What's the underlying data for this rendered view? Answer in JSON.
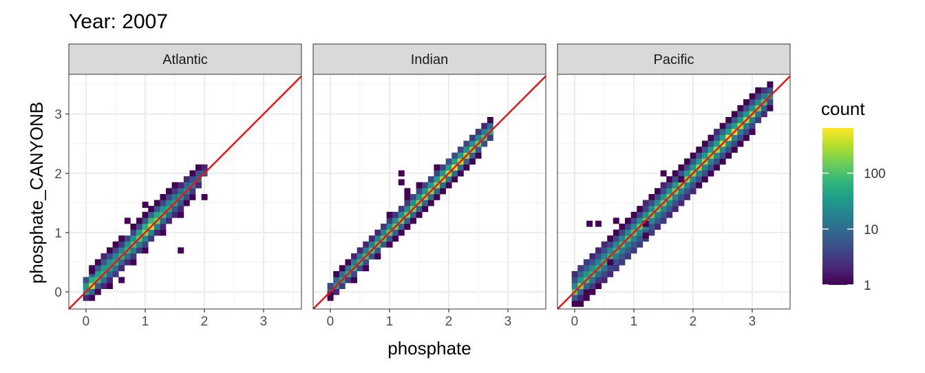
{
  "chart_data": {
    "type": "heatmap",
    "subtype": "2d-histogram faceted",
    "title": "Year: 2007",
    "xlabel": "phosphate",
    "ylabel": "phosphate_CANYONB",
    "xlim": [
      -0.29,
      3.64
    ],
    "ylim": [
      -0.29,
      3.67
    ],
    "x_ticks": [
      "0",
      "1",
      "2",
      "3"
    ],
    "y_ticks": [
      "0",
      "1",
      "2",
      "3"
    ],
    "x_tick_values": [
      0,
      1,
      2,
      3
    ],
    "y_tick_values": [
      0,
      1,
      2,
      3
    ],
    "grid": true,
    "reference_line": {
      "slope": 1,
      "intercept": 0,
      "color": "#ee1111"
    },
    "bin_width": 0.1,
    "strip_offsets_note": "each strip: [x, counts at y = x + k*bin for k = -3..3]",
    "legend": {
      "title": "count",
      "scale": "log10",
      "range": [
        1,
        640
      ],
      "ticks": [
        "1",
        "10",
        "100"
      ],
      "tick_values": [
        1,
        10,
        100
      ],
      "colors": [
        "#440154",
        "#482878",
        "#3e4989",
        "#31688e",
        "#26828e",
        "#1f9e89",
        "#35b779",
        "#6ece58",
        "#b5de2b",
        "#fde725"
      ],
      "placement": "right"
    },
    "facets": [
      {
        "name": "Atlantic",
        "strips": [
          [
            0.0,
            [
              0,
              0,
              2,
              40,
              30,
              5,
              0
            ]
          ],
          [
            0.1,
            [
              0,
              1,
              8,
              300,
              60,
              8,
              1
            ]
          ],
          [
            0.2,
            [
              0,
              1,
              6,
              80,
              40,
              6,
              1
            ]
          ],
          [
            0.3,
            [
              0,
              2,
              10,
              60,
              30,
              6,
              2
            ]
          ],
          [
            0.4,
            [
              1,
              2,
              8,
              40,
              25,
              5,
              1
            ]
          ],
          [
            0.5,
            [
              0,
              3,
              10,
              50,
              20,
              4,
              1
            ]
          ],
          [
            0.6,
            [
              0,
              2,
              8,
              60,
              20,
              3,
              1
            ]
          ],
          [
            0.7,
            [
              0,
              2,
              10,
              70,
              25,
              4,
              0
            ]
          ],
          [
            0.8,
            [
              1,
              3,
              15,
              90,
              30,
              4,
              1
            ]
          ],
          [
            0.9,
            [
              0,
              3,
              15,
              120,
              40,
              5,
              1
            ]
          ],
          [
            1.0,
            [
              1,
              4,
              20,
              200,
              60,
              6,
              1
            ]
          ],
          [
            1.1,
            [
              0,
              3,
              20,
              400,
              80,
              8,
              1
            ]
          ],
          [
            1.2,
            [
              0,
              2,
              15,
              150,
              50,
              6,
              1
            ]
          ],
          [
            1.3,
            [
              1,
              2,
              10,
              80,
              30,
              4,
              1
            ]
          ],
          [
            1.4,
            [
              0,
              2,
              8,
              50,
              20,
              4,
              1
            ]
          ],
          [
            1.5,
            [
              0,
              2,
              6,
              40,
              15,
              3,
              1
            ]
          ],
          [
            1.6,
            [
              1,
              2,
              5,
              30,
              10,
              2,
              0
            ]
          ],
          [
            1.7,
            [
              0,
              1,
              4,
              20,
              8,
              2,
              0
            ]
          ],
          [
            1.8,
            [
              0,
              1,
              3,
              15,
              6,
              1,
              0
            ]
          ],
          [
            1.9,
            [
              0,
              0,
              2,
              10,
              5,
              1,
              0
            ]
          ],
          [
            2.0,
            [
              0,
              0,
              0,
              6,
              2,
              0,
              0
            ]
          ]
        ],
        "outliers": [
          [
            1.6,
            0.7,
            1
          ],
          [
            0.6,
            0.2,
            1
          ],
          [
            2.0,
            1.6,
            1
          ],
          [
            1.0,
            1.47,
            1
          ],
          [
            0.7,
            1.2,
            1
          ],
          [
            0.1,
            0.35,
            1
          ]
        ]
      },
      {
        "name": "Indian",
        "strips": [
          [
            0.0,
            [
              0,
              0,
              1,
              8,
              4,
              0,
              0
            ]
          ],
          [
            0.1,
            [
              0,
              0,
              2,
              30,
              8,
              1,
              0
            ]
          ],
          [
            0.2,
            [
              0,
              0,
              3,
              40,
              10,
              1,
              0
            ]
          ],
          [
            0.3,
            [
              0,
              0,
              3,
              50,
              12,
              1,
              0
            ]
          ],
          [
            0.4,
            [
              0,
              1,
              4,
              60,
              14,
              2,
              0
            ]
          ],
          [
            0.5,
            [
              0,
              0,
              4,
              70,
              15,
              2,
              0
            ]
          ],
          [
            0.6,
            [
              0,
              1,
              5,
              80,
              16,
              2,
              0
            ]
          ],
          [
            0.7,
            [
              0,
              0,
              5,
              90,
              18,
              2,
              0
            ]
          ],
          [
            0.8,
            [
              0,
              1,
              6,
              100,
              20,
              2,
              0
            ]
          ],
          [
            0.9,
            [
              0,
              0,
              6,
              110,
              20,
              3,
              0
            ]
          ],
          [
            1.0,
            [
              0,
              1,
              6,
              120,
              22,
              3,
              1
            ]
          ],
          [
            1.1,
            [
              0,
              1,
              7,
              130,
              24,
              3,
              0
            ]
          ],
          [
            1.2,
            [
              0,
              1,
              7,
              140,
              25,
              3,
              0
            ]
          ],
          [
            1.3,
            [
              0,
              1,
              7,
              150,
              26,
              3,
              1
            ]
          ],
          [
            1.4,
            [
              0,
              1,
              8,
              160,
              28,
              4,
              0
            ]
          ],
          [
            1.5,
            [
              0,
              1,
              8,
              170,
              30,
              4,
              1
            ]
          ],
          [
            1.6,
            [
              0,
              1,
              8,
              180,
              30,
              4,
              0
            ]
          ],
          [
            1.7,
            [
              0,
              1,
              9,
              200,
              32,
              4,
              0
            ]
          ],
          [
            1.8,
            [
              0,
              1,
              10,
              220,
              34,
              4,
              1
            ]
          ],
          [
            1.9,
            [
              0,
              1,
              10,
              260,
              36,
              4,
              0
            ]
          ],
          [
            2.0,
            [
              0,
              1,
              10,
              300,
              40,
              5,
              0
            ]
          ],
          [
            2.1,
            [
              0,
              1,
              10,
              450,
              40,
              5,
              0
            ]
          ],
          [
            2.2,
            [
              0,
              1,
              9,
              350,
              36,
              4,
              0
            ]
          ],
          [
            2.3,
            [
              0,
              1,
              8,
              250,
              30,
              4,
              0
            ]
          ],
          [
            2.4,
            [
              0,
              1,
              7,
              180,
              26,
              3,
              0
            ]
          ],
          [
            2.5,
            [
              0,
              1,
              6,
              140,
              20,
              3,
              0
            ]
          ],
          [
            2.6,
            [
              0,
              0,
              5,
              100,
              16,
              2,
              0
            ]
          ],
          [
            2.7,
            [
              0,
              0,
              3,
              40,
              10,
              1,
              0
            ]
          ]
        ],
        "outliers": [
          [
            1.2,
            2.0,
            1
          ],
          [
            1.2,
            1.85,
            1
          ],
          [
            1.3,
            1.7,
            1
          ],
          [
            0.0,
            -0.05,
            1
          ]
        ]
      },
      {
        "name": "Pacific",
        "strips": [
          [
            0.0,
            [
              0,
              1,
              6,
              120,
              20,
              5,
              2
            ]
          ],
          [
            0.1,
            [
              1,
              2,
              8,
              200,
              30,
              8,
              3
            ]
          ],
          [
            0.2,
            [
              1,
              2,
              8,
              90,
              30,
              8,
              3
            ]
          ],
          [
            0.3,
            [
              1,
              3,
              10,
              70,
              25,
              6,
              2
            ]
          ],
          [
            0.4,
            [
              1,
              3,
              10,
              60,
              20,
              5,
              2
            ]
          ],
          [
            0.5,
            [
              2,
              4,
              12,
              60,
              20,
              5,
              2
            ]
          ],
          [
            0.6,
            [
              2,
              4,
              12,
              60,
              20,
              4,
              1
            ]
          ],
          [
            0.7,
            [
              3,
              5,
              14,
              70,
              20,
              4,
              1
            ]
          ],
          [
            0.8,
            [
              3,
              6,
              15,
              80,
              20,
              4,
              1
            ]
          ],
          [
            0.9,
            [
              3,
              6,
              16,
              90,
              22,
              4,
              1
            ]
          ],
          [
            1.0,
            [
              3,
              6,
              18,
              100,
              24,
              4,
              1
            ]
          ],
          [
            1.1,
            [
              3,
              6,
              18,
              110,
              24,
              4,
              1
            ]
          ],
          [
            1.2,
            [
              3,
              6,
              18,
              110,
              24,
              4,
              2
            ]
          ],
          [
            1.3,
            [
              3,
              6,
              18,
              120,
              25,
              5,
              1
            ]
          ],
          [
            1.4,
            [
              2,
              6,
              18,
              130,
              26,
              5,
              1
            ]
          ],
          [
            1.5,
            [
              3,
              6,
              18,
              140,
              28,
              5,
              2
            ]
          ],
          [
            1.6,
            [
              2,
              6,
              18,
              150,
              28,
              5,
              1
            ]
          ],
          [
            1.7,
            [
              2,
              5,
              18,
              160,
              30,
              5,
              1
            ]
          ],
          [
            1.8,
            [
              2,
              5,
              18,
              170,
              30,
              5,
              1
            ]
          ],
          [
            1.9,
            [
              2,
              5,
              18,
              180,
              30,
              5,
              1
            ]
          ],
          [
            2.0,
            [
              2,
              5,
              18,
              190,
              32,
              6,
              1
            ]
          ],
          [
            2.1,
            [
              1,
              5,
              18,
              200,
              32,
              6,
              1
            ]
          ],
          [
            2.2,
            [
              1,
              5,
              18,
              210,
              32,
              6,
              1
            ]
          ],
          [
            2.3,
            [
              1,
              5,
              18,
              230,
              34,
              6,
              1
            ]
          ],
          [
            2.4,
            [
              1,
              5,
              18,
              260,
              36,
              6,
              2
            ]
          ],
          [
            2.5,
            [
              1,
              5,
              20,
              350,
              40,
              8,
              1
            ]
          ],
          [
            2.6,
            [
              1,
              5,
              20,
              600,
              40,
              8,
              1
            ]
          ],
          [
            2.7,
            [
              1,
              4,
              18,
              400,
              36,
              6,
              1
            ]
          ],
          [
            2.8,
            [
              1,
              4,
              16,
              300,
              32,
              6,
              1
            ]
          ],
          [
            2.9,
            [
              1,
              4,
              15,
              250,
              30,
              5,
              1
            ]
          ],
          [
            3.0,
            [
              1,
              4,
              14,
              220,
              26,
              5,
              1
            ]
          ],
          [
            3.1,
            [
              0,
              3,
              12,
              180,
              22,
              4,
              1
            ]
          ],
          [
            3.2,
            [
              0,
              2,
              8,
              100,
              16,
              3,
              0
            ]
          ],
          [
            3.3,
            [
              0,
              1,
              4,
              30,
              6,
              1,
              0
            ]
          ]
        ],
        "outliers": [
          [
            0.25,
            1.15,
            1
          ],
          [
            0.4,
            1.15,
            1
          ],
          [
            0.7,
            1.2,
            1
          ],
          [
            1.2,
            1.15,
            1
          ],
          [
            1.5,
            2.0,
            1
          ],
          [
            1.8,
            1.9,
            1
          ],
          [
            1.2,
            0.95,
            1
          ],
          [
            0.2,
            -0.02,
            1
          ],
          [
            0.6,
            0.5,
            1
          ]
        ]
      }
    ]
  }
}
